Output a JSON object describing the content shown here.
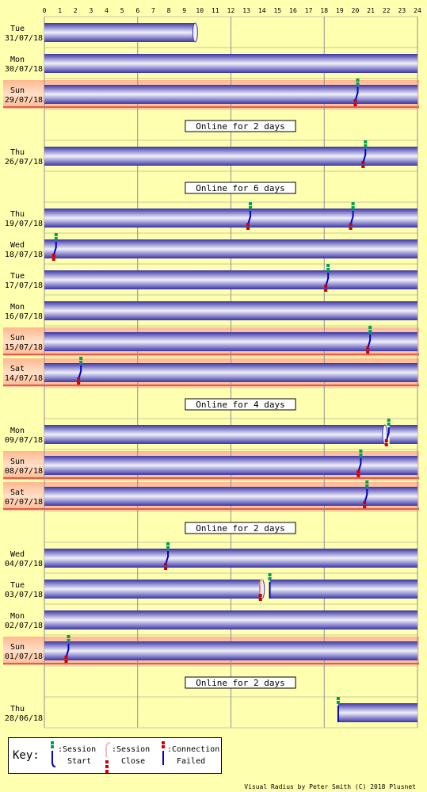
{
  "chart_data": {
    "type": "timeline",
    "x_ticks": [
      "0",
      "1",
      "2",
      "3",
      "4",
      "5",
      "6",
      "7",
      "8",
      "9",
      "10",
      "11",
      "12",
      "13",
      "14",
      "15",
      "16",
      "17",
      "18",
      "19",
      "20",
      "21",
      "22",
      "23",
      "24"
    ],
    "xlim": [
      0,
      24
    ],
    "grid": true,
    "rows": [
      {
        "day": "Tue",
        "date": "31/07/18",
        "weekend": false,
        "online": [
          [
            0,
            9.7
          ]
        ],
        "events": []
      },
      {
        "day": "Mon",
        "date": "30/07/18",
        "weekend": false,
        "online": [
          [
            0,
            24
          ]
        ],
        "events": []
      },
      {
        "day": "Sun",
        "date": "29/07/18",
        "weekend": true,
        "online": [
          [
            0,
            24
          ]
        ],
        "events": [
          {
            "t": 20.0,
            "type": "failed"
          }
        ]
      },
      {
        "day": "",
        "date": "",
        "gap": true,
        "label": "Online for 2 days"
      },
      {
        "day": "Thu",
        "date": "26/07/18",
        "weekend": false,
        "online": [
          [
            0,
            24
          ]
        ],
        "events": [
          {
            "t": 20.5,
            "type": "failed"
          }
        ]
      },
      {
        "day": "",
        "date": "",
        "gap": true,
        "label": "Online for 6 days"
      },
      {
        "day": "Thu",
        "date": "19/07/18",
        "weekend": false,
        "online": [
          [
            0,
            24
          ]
        ],
        "events": [
          {
            "t": 13.1,
            "type": "failed"
          },
          {
            "t": 19.7,
            "type": "failed"
          }
        ]
      },
      {
        "day": "Wed",
        "date": "18/07/18",
        "weekend": false,
        "online": [
          [
            0,
            24
          ]
        ],
        "events": [
          {
            "t": 0.6,
            "type": "failed"
          }
        ]
      },
      {
        "day": "Tue",
        "date": "17/07/18",
        "weekend": false,
        "online": [
          [
            0,
            24
          ]
        ],
        "events": [
          {
            "t": 18.1,
            "type": "failed"
          }
        ]
      },
      {
        "day": "Mon",
        "date": "16/07/18",
        "weekend": false,
        "online": [
          [
            0,
            24
          ]
        ],
        "events": []
      },
      {
        "day": "Sun",
        "date": "15/07/18",
        "weekend": true,
        "online": [
          [
            0,
            24
          ]
        ],
        "events": [
          {
            "t": 20.8,
            "type": "failed"
          }
        ]
      },
      {
        "day": "Sat",
        "date": "14/07/18",
        "weekend": true,
        "online": [
          [
            0,
            24
          ]
        ],
        "events": [
          {
            "t": 2.2,
            "type": "failed"
          }
        ]
      },
      {
        "day": "",
        "date": "",
        "gap": true,
        "label": "Online for 4 days"
      },
      {
        "day": "Mon",
        "date": "09/07/18",
        "weekend": false,
        "online": [
          [
            0,
            21.9
          ],
          [
            22.2,
            24
          ]
        ],
        "events": [
          {
            "t": 22.0,
            "type": "close_start"
          }
        ]
      },
      {
        "day": "Sun",
        "date": "08/07/18",
        "weekend": true,
        "online": [
          [
            0,
            24
          ]
        ],
        "events": [
          {
            "t": 20.2,
            "type": "failed"
          }
        ]
      },
      {
        "day": "Sat",
        "date": "07/07/18",
        "weekend": true,
        "online": [
          [
            0,
            24
          ]
        ],
        "events": [
          {
            "t": 20.6,
            "type": "failed"
          }
        ]
      },
      {
        "day": "",
        "date": "",
        "gap": true,
        "label": "Online for 2 days"
      },
      {
        "day": "Wed",
        "date": "04/07/18",
        "weekend": false,
        "online": [
          [
            0,
            24
          ]
        ],
        "events": [
          {
            "t": 7.8,
            "type": "failed"
          }
        ]
      },
      {
        "day": "Tue",
        "date": "03/07/18",
        "weekend": false,
        "online": [
          [
            0,
            14.0
          ],
          [
            14.5,
            24
          ]
        ],
        "events": [
          {
            "t": 14.0,
            "type": "close"
          },
          {
            "t": 14.5,
            "type": "start"
          }
        ]
      },
      {
        "day": "Mon",
        "date": "02/07/18",
        "weekend": false,
        "online": [
          [
            0,
            24
          ]
        ],
        "events": []
      },
      {
        "day": "Sun",
        "date": "01/07/18",
        "weekend": true,
        "online": [
          [
            0,
            24
          ]
        ],
        "events": [
          {
            "t": 1.4,
            "type": "failed"
          }
        ]
      },
      {
        "day": "",
        "date": "",
        "gap": true,
        "label": "Online for 2 days"
      },
      {
        "day": "Thu",
        "date": "28/06/18",
        "weekend": false,
        "online": [
          [
            18.9,
            24
          ]
        ],
        "events": [
          {
            "t": 18.9,
            "type": "start"
          }
        ]
      }
    ],
    "colors": {
      "background": "#ffffb0",
      "weekend_band": "#ffc8a0",
      "grid": "#909090",
      "bar_edge": "#3a34a8",
      "bar_mid": "#e8e8f8",
      "session_start": "#00a050",
      "session_close": "#d00000",
      "failed": "#0000c0"
    }
  },
  "key": {
    "title": "Key:",
    "session_start": "Session Start",
    "session_start_l1": ":Session",
    "session_start_l2": "Start",
    "session_close_l1": ":Session",
    "session_close_l2": "Close",
    "failed_l1": ":Connection",
    "failed_l2": "Failed"
  },
  "credit": "Visual Radius by Peter Smith (C) 2018 Plusnet"
}
